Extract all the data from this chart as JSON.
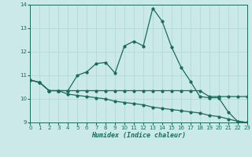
{
  "xlabel": "Humidex (Indice chaleur)",
  "xlim": [
    0,
    23
  ],
  "ylim": [
    9,
    14
  ],
  "yticks": [
    9,
    10,
    11,
    12,
    13,
    14
  ],
  "xticks": [
    0,
    1,
    2,
    3,
    4,
    5,
    6,
    7,
    8,
    9,
    10,
    11,
    12,
    13,
    14,
    15,
    16,
    17,
    18,
    19,
    20,
    21,
    22,
    23
  ],
  "bg_color": "#cce9e9",
  "grid_color": "#afd4d4",
  "line_color": "#1a6b5a",
  "line1_x": [
    0,
    1,
    2,
    3,
    4,
    5,
    6,
    7,
    8,
    9,
    10,
    11,
    12,
    13,
    14,
    15,
    16,
    17,
    18,
    19,
    20,
    21,
    22,
    23
  ],
  "line1_y": [
    10.8,
    10.7,
    10.35,
    10.35,
    10.35,
    11.0,
    11.15,
    11.5,
    11.55,
    11.1,
    12.25,
    12.45,
    12.25,
    13.85,
    13.3,
    12.2,
    11.35,
    10.75,
    10.1,
    10.05,
    10.05,
    9.45,
    9.05,
    9.0
  ],
  "line2_x": [
    0,
    1,
    2,
    3,
    4,
    5,
    6,
    7,
    8,
    9,
    10,
    11,
    12,
    13,
    14,
    15,
    16,
    17,
    18,
    19,
    20,
    21,
    22,
    23
  ],
  "line2_y": [
    10.8,
    10.7,
    10.35,
    10.35,
    10.2,
    10.15,
    10.1,
    10.05,
    10.0,
    9.9,
    9.85,
    9.8,
    9.75,
    9.65,
    9.6,
    9.55,
    9.5,
    9.45,
    9.4,
    9.3,
    9.25,
    9.15,
    9.05,
    9.0
  ],
  "line3_x": [
    0,
    1,
    2,
    3,
    4,
    5,
    6,
    7,
    8,
    9,
    10,
    11,
    12,
    13,
    14,
    15,
    16,
    17,
    18,
    19,
    20,
    21,
    22,
    23
  ],
  "line3_y": [
    10.8,
    10.7,
    10.35,
    10.35,
    10.35,
    10.35,
    10.35,
    10.35,
    10.35,
    10.35,
    10.35,
    10.35,
    10.35,
    10.35,
    10.35,
    10.35,
    10.35,
    10.35,
    10.35,
    10.1,
    10.1,
    10.1,
    10.1,
    10.1
  ]
}
